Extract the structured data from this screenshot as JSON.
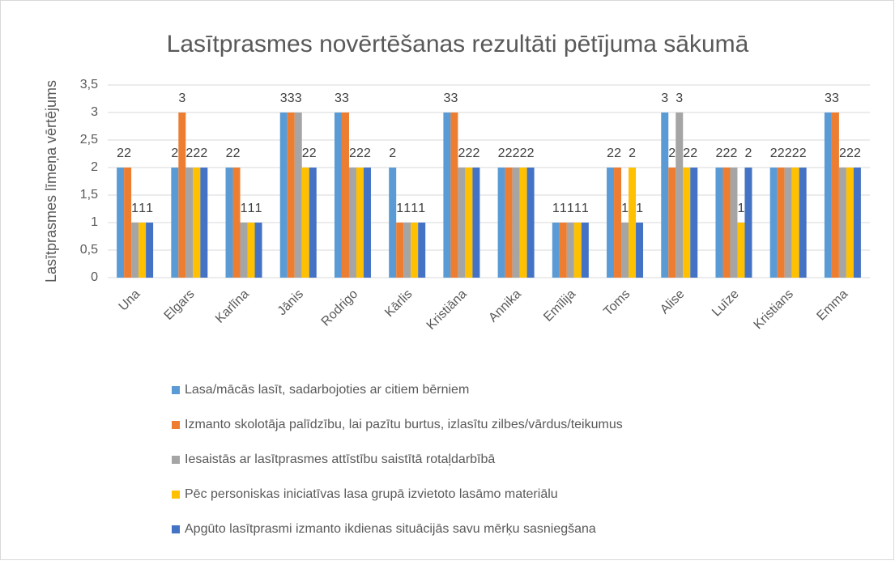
{
  "chart_data": {
    "type": "bar",
    "title": "Lasītprasmes novērtēšanas rezultāti pētījuma sākumā",
    "y_label": "Lasītprasmes līmeņa vērtējums",
    "categories": [
      "Una",
      "Elgars",
      "Karlīna",
      "Jānis",
      "Rodrigo",
      "Kārlis",
      "Kristiāna",
      "Annika",
      "Emīlija",
      "Toms",
      "Alise",
      "Luīze",
      "Kristians",
      "Emma"
    ],
    "series": [
      {
        "name": "Lasa/mācās lasīt, sadarbojoties ar citiem bērniem",
        "color": "#5b9bd5",
        "values": [
          2,
          2,
          2,
          3,
          3,
          2,
          3,
          2,
          1,
          2,
          3,
          2,
          2,
          3
        ]
      },
      {
        "name": "Izmanto skolotāja palīdzību, lai pazītu burtus, izlasītu zilbes/vārdus/teikumus",
        "color": "#ed7d31",
        "values": [
          2,
          3,
          2,
          3,
          3,
          1,
          3,
          2,
          1,
          2,
          2,
          2,
          2,
          3
        ]
      },
      {
        "name": "Iesaistās ar lasītprasmes attīstību saistītā rotaļdarbībā",
        "color": "#a5a5a5",
        "values": [
          1,
          2,
          1,
          3,
          2,
          1,
          2,
          2,
          1,
          1,
          3,
          2,
          2,
          2
        ]
      },
      {
        "name": "Pēc personiskas iniciatīvas lasa grupā izvietoto lasāmo materiālu",
        "color": "#ffc000",
        "values": [
          1,
          2,
          1,
          2,
          2,
          1,
          2,
          2,
          1,
          2,
          2,
          1,
          2,
          2
        ]
      },
      {
        "name": "Apgūto lasītprasmi izmanto ikdienas situācijās savu mērķu sasniegšana",
        "color": "#4472c4",
        "values": [
          1,
          2,
          1,
          2,
          2,
          1,
          2,
          2,
          1,
          1,
          2,
          2,
          2,
          2
        ]
      }
    ],
    "ylim": [
      0,
      3.5
    ],
    "yticks": [
      0,
      {
        "value": 0.5,
        "label": "0,5"
      },
      1,
      {
        "value": 1.5,
        "label": "1,5"
      },
      2,
      {
        "value": 2.5,
        "label": "2,5"
      },
      3,
      {
        "value": 3.5,
        "label": "3,5"
      }
    ],
    "grid": true,
    "legend": "bottom"
  }
}
